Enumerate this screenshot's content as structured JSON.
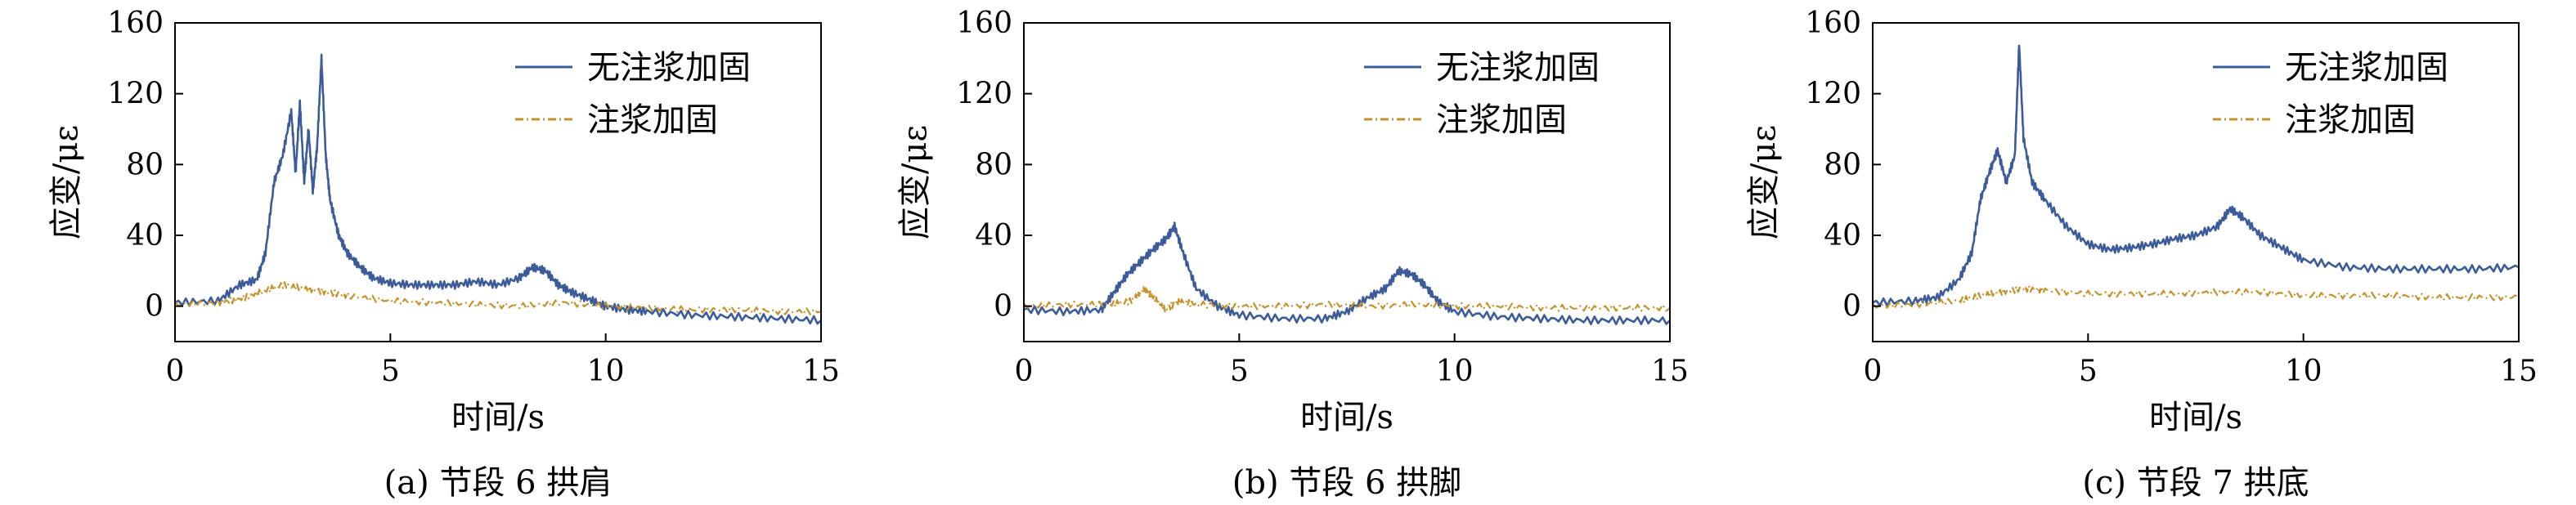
{
  "chart_data": [
    {
      "type": "line",
      "caption": "(a) 节段 6 拱肩",
      "xlabel": "时间/s",
      "ylabel": "应变/με",
      "xlim": [
        0,
        15
      ],
      "ylim": [
        -20,
        160
      ],
      "xticks": [
        0,
        5,
        10,
        15
      ],
      "yticks": [
        0,
        40,
        80,
        120,
        160
      ],
      "legend_position": "top-right",
      "series": [
        {
          "name": "无注浆加固",
          "color": "#3b5b9a",
          "style": "solid",
          "x": [
            0,
            1,
            1.5,
            1.9,
            2.1,
            2.3,
            2.5,
            2.7,
            2.8,
            2.9,
            3.0,
            3.1,
            3.2,
            3.3,
            3.4,
            3.5,
            3.6,
            3.8,
            4.0,
            4.3,
            4.6,
            5.0,
            5.5,
            6,
            6.5,
            7,
            7.5,
            8,
            8.3,
            8.6,
            8.9,
            9.2,
            9.6,
            10,
            10.5,
            11,
            12,
            13,
            14,
            15
          ],
          "y": [
            2,
            3,
            12,
            15,
            30,
            70,
            85,
            110,
            75,
            115,
            70,
            100,
            65,
            90,
            140,
            85,
            60,
            40,
            30,
            22,
            16,
            13,
            12,
            12,
            12,
            14,
            12,
            16,
            22,
            20,
            12,
            8,
            4,
            0,
            -2,
            -3,
            -5,
            -6,
            -7,
            -8
          ]
        },
        {
          "name": "注浆加固",
          "color": "#c8922a",
          "style": "dash-dot",
          "x": [
            0,
            1,
            1.5,
            2,
            2.5,
            3,
            3.5,
            4,
            5,
            6,
            7,
            8,
            9,
            10,
            11,
            12,
            13,
            14,
            15
          ],
          "y": [
            1,
            2,
            4,
            8,
            12,
            10,
            8,
            6,
            3,
            2,
            1,
            0,
            2,
            0,
            -1,
            -2,
            -2,
            -3,
            -3
          ]
        }
      ]
    },
    {
      "type": "line",
      "caption": "(b) 节段 6 拱脚",
      "xlabel": "时间/s",
      "ylabel": "应变/με",
      "xlim": [
        0,
        15
      ],
      "ylim": [
        -20,
        160
      ],
      "xticks": [
        0,
        5,
        10,
        15
      ],
      "yticks": [
        0,
        40,
        80,
        120,
        160
      ],
      "legend_position": "top-right",
      "series": [
        {
          "name": "无注浆加固",
          "color": "#3b5b9a",
          "style": "solid",
          "x": [
            0,
            1,
            1.8,
            2.1,
            2.4,
            2.7,
            3.0,
            3.3,
            3.5,
            3.7,
            4.0,
            4.5,
            5,
            6,
            7,
            7.5,
            8,
            8.4,
            8.7,
            9.0,
            9.3,
            9.6,
            10,
            11,
            12,
            13,
            14,
            15
          ],
          "y": [
            -2,
            -3,
            -2,
            8,
            18,
            25,
            32,
            38,
            45,
            30,
            10,
            0,
            -5,
            -7,
            -7,
            -3,
            5,
            10,
            20,
            18,
            12,
            3,
            -3,
            -6,
            -7,
            -8,
            -8,
            -8
          ]
        },
        {
          "name": "注浆加固",
          "color": "#c8922a",
          "style": "dash-dot",
          "x": [
            0,
            1,
            2,
            2.5,
            2.8,
            3.0,
            3.3,
            3.6,
            4,
            5,
            6,
            7,
            8,
            9,
            10,
            11,
            12,
            13,
            14,
            15
          ],
          "y": [
            0,
            1,
            1,
            3,
            10,
            5,
            -2,
            3,
            1,
            0,
            0,
            1,
            0,
            1,
            0,
            0,
            -1,
            -1,
            -1,
            -1
          ]
        }
      ]
    },
    {
      "type": "line",
      "caption": "(c) 节段 7 拱底",
      "xlabel": "时间/s",
      "ylabel": "应变/με",
      "xlim": [
        0,
        15
      ],
      "ylim": [
        -20,
        160
      ],
      "xticks": [
        0,
        5,
        10,
        15
      ],
      "yticks": [
        0,
        40,
        80,
        120,
        160
      ],
      "legend_position": "top-right",
      "series": [
        {
          "name": "无注浆加固",
          "color": "#3b5b9a",
          "style": "solid",
          "x": [
            0,
            1,
            1.5,
            2.0,
            2.3,
            2.5,
            2.7,
            2.9,
            3.1,
            3.3,
            3.4,
            3.5,
            3.7,
            4.0,
            4.5,
            5.0,
            5.5,
            6.0,
            6.5,
            7.0,
            7.5,
            8.0,
            8.3,
            8.6,
            9.0,
            9.5,
            10,
            11,
            12,
            13,
            14,
            15
          ],
          "y": [
            2,
            3,
            5,
            15,
            30,
            60,
            75,
            88,
            70,
            85,
            148,
            95,
            70,
            60,
            45,
            35,
            32,
            33,
            35,
            38,
            40,
            45,
            55,
            50,
            40,
            33,
            26,
            22,
            21,
            21,
            21,
            22
          ]
        },
        {
          "name": "注浆加固",
          "color": "#c8922a",
          "style": "dash-dot",
          "x": [
            0,
            1,
            2,
            2.5,
            3,
            3.5,
            4,
            5,
            6,
            7,
            8,
            9,
            10,
            11,
            12,
            13,
            14,
            15
          ],
          "y": [
            0,
            1,
            3,
            6,
            8,
            10,
            9,
            7,
            7,
            7,
            8,
            8,
            6,
            6,
            6,
            5,
            5,
            5
          ]
        }
      ]
    }
  ]
}
